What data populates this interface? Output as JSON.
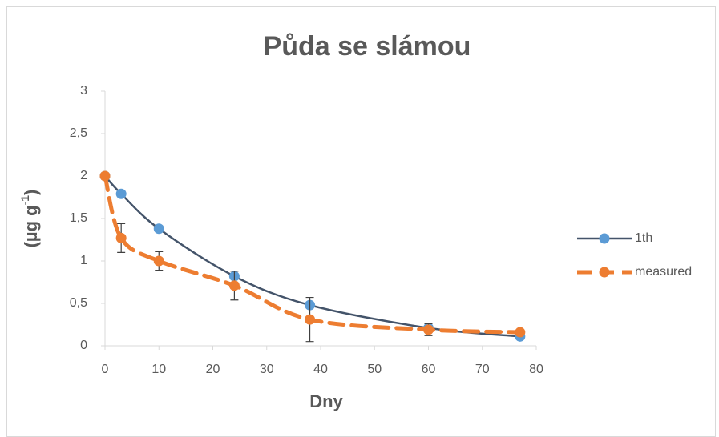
{
  "chart_data": {
    "type": "line",
    "title": "Půda se slámou",
    "x_label": "Dny",
    "y_label": {
      "text": "(µg g",
      "superscript": "-1",
      "suffix": ")"
    },
    "smooth": true,
    "x": [
      0,
      3,
      10,
      24,
      38,
      60,
      77
    ],
    "series": [
      {
        "name": "1th",
        "color": "#44546a",
        "marker_color": "#5b9bd5",
        "dashed": false,
        "values": [
          2.0,
          1.79,
          1.38,
          0.82,
          0.48,
          0.21,
          0.11
        ]
      },
      {
        "name": "measured",
        "color": "#ed7d31",
        "marker_color": "#ed7d31",
        "dashed": true,
        "values": [
          2.0,
          1.27,
          1.0,
          0.71,
          0.31,
          0.19,
          0.16
        ],
        "errors": [
          0,
          0.17,
          0.11,
          0.17,
          0.26,
          0.07,
          0
        ]
      }
    ],
    "xlim": [
      0,
      80
    ],
    "xticks": [
      0,
      10,
      20,
      30,
      40,
      50,
      60,
      70,
      80
    ],
    "ylim": [
      0,
      3
    ],
    "yticks": [
      0,
      {
        "value": 0.5,
        "label": "0,5"
      },
      1,
      {
        "value": 1.5,
        "label": "1,5"
      },
      2,
      {
        "value": 2.5,
        "label": "2,5"
      },
      3
    ],
    "grid": false,
    "legend": "right"
  }
}
